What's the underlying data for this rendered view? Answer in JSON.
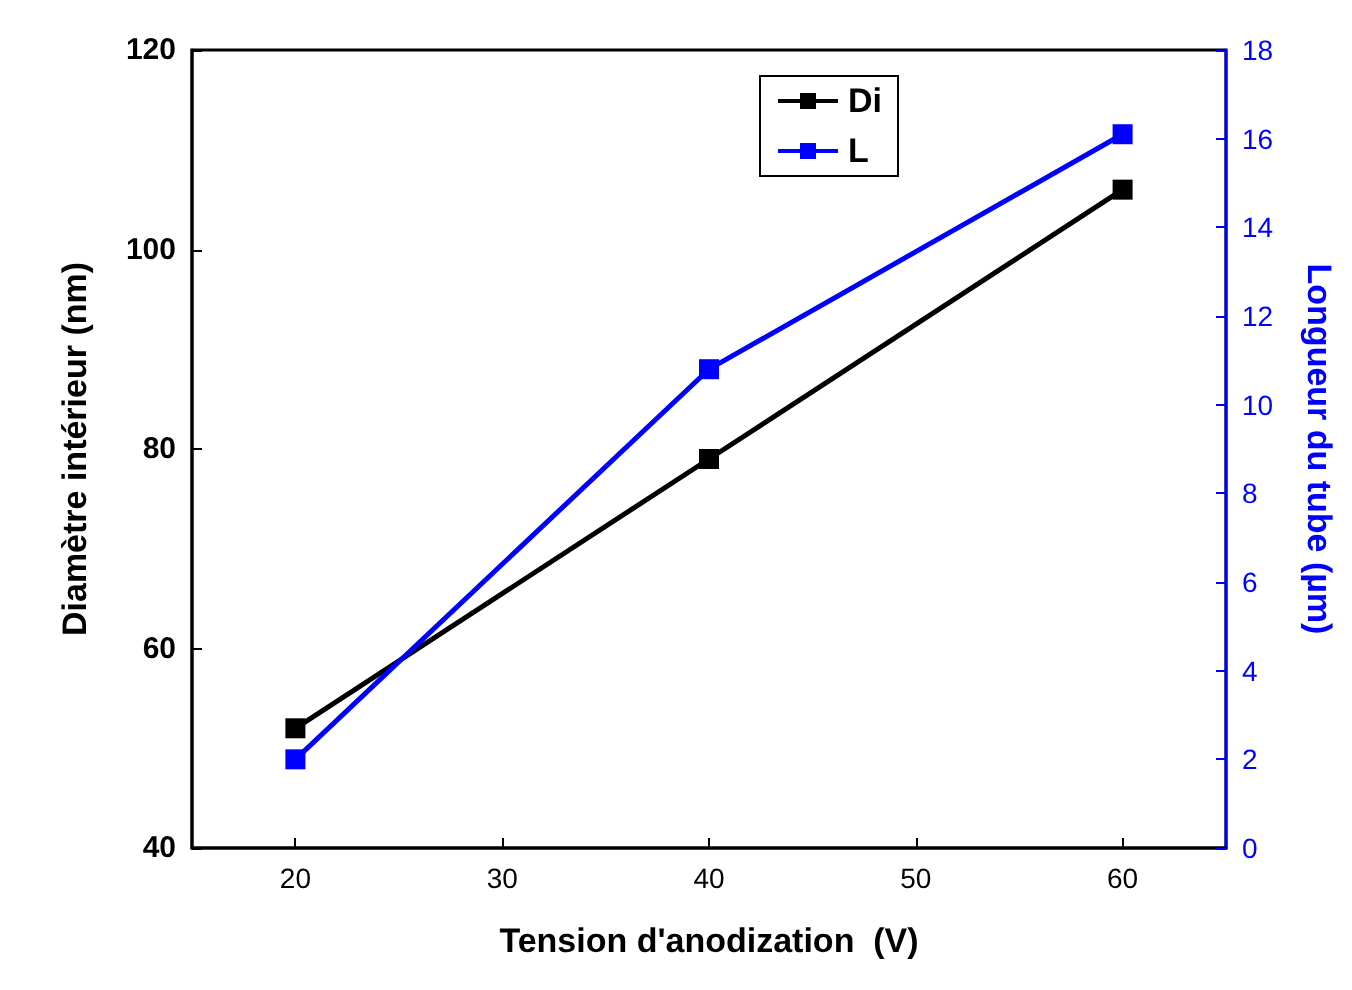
{
  "chart_data": {
    "type": "line",
    "xlabel": "Tension d'anodization  (V)",
    "ylabel": "Diamètre intérieur (nm)",
    "y2label": "Longueur du tube (µm)",
    "x": [
      20,
      40,
      60
    ],
    "series": [
      {
        "name": "Di",
        "color": "#000000",
        "values": [
          52,
          79,
          106
        ]
      },
      {
        "name": "L",
        "color": "#0000ff",
        "values": [
          2,
          10.8,
          16.1
        ],
        "axis": "y2"
      }
    ],
    "xlim": [
      15,
      65
    ],
    "xticks": [
      20,
      30,
      40,
      50,
      60
    ],
    "ylim": [
      40,
      120
    ],
    "yticks": [
      40,
      60,
      80,
      100,
      120
    ],
    "y2lim": [
      0,
      18
    ],
    "y2ticks": [
      0,
      2,
      4,
      6,
      8,
      10,
      12,
      14,
      16,
      18
    ],
    "marker": "square",
    "line_style": "solid",
    "legend": "top",
    "grid": false
  }
}
